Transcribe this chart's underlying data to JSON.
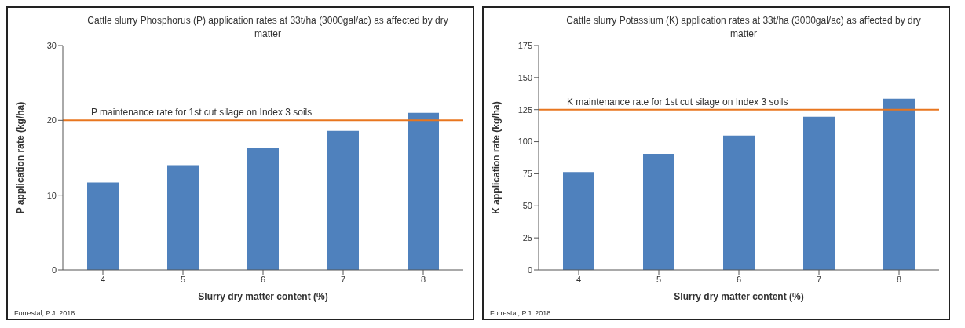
{
  "chart_data": [
    {
      "type": "bar",
      "title": "Cattle slurry Phosphorus (P) application rates at 33t/ha (3000gal/ac) as affected by dry matter",
      "xlabel": "Slurry dry matter content (%)",
      "ylabel": "P application rate (kg/ha)",
      "categories": [
        "4",
        "5",
        "6",
        "7",
        "8"
      ],
      "values": [
        11.7,
        14.0,
        16.3,
        18.6,
        21.0
      ],
      "color": "#4f81bd",
      "ylim": [
        0,
        30
      ],
      "yticks": [
        0,
        10,
        20,
        30
      ],
      "grid": false,
      "legend": false,
      "ref_lines": [
        {
          "axis": "y",
          "value": 20,
          "label": "P maintenance rate for 1st cut silage on Index 3 soils",
          "color": "#e8761f"
        }
      ],
      "annotations": [
        "Forrestal, P.J. 2018"
      ]
    },
    {
      "type": "bar",
      "title": "Cattle slurry Potassium (K) application rates at 33t/ha (3000gal/ac) as affected by dry matter",
      "xlabel": "Slurry dry matter content (%)",
      "ylabel": "K application rate (kg/ha)",
      "categories": [
        "4",
        "5",
        "6",
        "7",
        "8"
      ],
      "values": [
        76.4,
        90.6,
        104.8,
        119.4,
        133.6
      ],
      "color": "#4f81bd",
      "ylim": [
        0,
        175
      ],
      "yticks": [
        0,
        25,
        50,
        75,
        100,
        125,
        150,
        175
      ],
      "grid": false,
      "legend": false,
      "ref_lines": [
        {
          "axis": "y",
          "value": 125,
          "label": "K maintenance rate for 1st cut silage on Index 3 soils",
          "color": "#e8761f"
        }
      ],
      "annotations": [
        "Forrestal, P.J. 2018"
      ]
    }
  ]
}
